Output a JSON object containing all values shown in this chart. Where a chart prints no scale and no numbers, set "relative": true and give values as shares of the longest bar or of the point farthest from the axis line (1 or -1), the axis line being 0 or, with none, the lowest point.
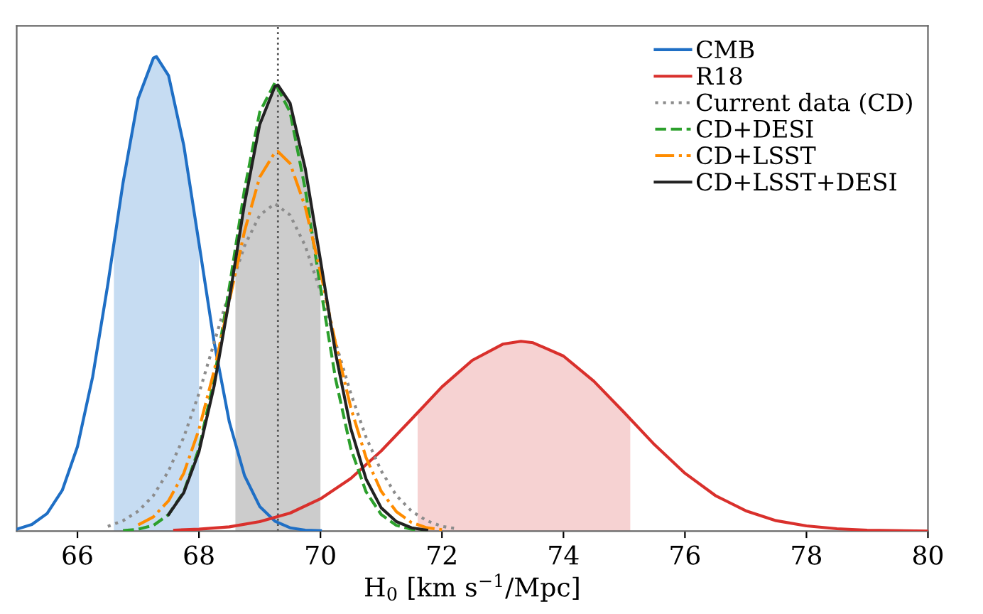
{
  "chart_data": {
    "type": "line",
    "relative": true,
    "xlabel": "H$_{0}$ [km s$^{−1}$/Mpc]",
    "xlim": [
      65,
      80
    ],
    "xticks": [
      66,
      68,
      70,
      72,
      74,
      76,
      78,
      80
    ],
    "tick_labels": "x",
    "grid": false,
    "legend": "top right",
    "ref_lines": [
      {
        "axis": "x",
        "value": 69.3,
        "color": "#555555",
        "line_style": "dotted"
      }
    ],
    "series": [
      {
        "type": "area",
        "color": "#c6dcf2",
        "x": [
          66.6,
          66.75,
          67,
          67.25,
          67.3,
          67.5,
          67.75,
          68
        ],
        "values": [
          0.607,
          0.734,
          0.912,
          0.997,
          1,
          0.96,
          0.813,
          0.607
        ]
      },
      {
        "type": "area",
        "color": "#f6d2d2",
        "x": [
          71.6,
          72,
          72.5,
          73,
          73.3,
          73.5,
          74,
          74.5,
          75,
          75.1
        ],
        "values": [
          0.25,
          0.304,
          0.36,
          0.394,
          0.4,
          0.397,
          0.369,
          0.316,
          0.25,
          0.236
        ]
      },
      {
        "type": "area",
        "color": "#cccccc",
        "x": [
          68.6,
          68.75,
          69,
          69.25,
          69.3,
          69.5,
          69.75,
          70
        ],
        "values": [
          0.571,
          0.69,
          0.857,
          0.937,
          0.94,
          0.902,
          0.764,
          0.571
        ]
      },
      {
        "name": "CMB",
        "color": "#1f6fc5",
        "line_style": "solid",
        "x": [
          65,
          65.25,
          65.5,
          65.75,
          66,
          66.25,
          66.5,
          66.75,
          67,
          67.25,
          67.3,
          67.5,
          67.75,
          68,
          68.25,
          68.5,
          68.75,
          69,
          69.25,
          69.5,
          69.75,
          70
        ],
        "values": [
          0.004,
          0.014,
          0.037,
          0.086,
          0.178,
          0.325,
          0.52,
          0.734,
          0.912,
          0.997,
          1,
          0.96,
          0.813,
          0.607,
          0.398,
          0.23,
          0.117,
          0.052,
          0.021,
          0.007,
          0.002,
          0.001
        ]
      },
      {
        "name": "R18",
        "color": "#d9302c",
        "line_style": "solid",
        "x": [
          67.6,
          68,
          68.5,
          69,
          69.5,
          70,
          70.5,
          71,
          71.5,
          72,
          72.5,
          73,
          73.3,
          73.5,
          74,
          74.5,
          75,
          75.5,
          76,
          76.5,
          77,
          77.5,
          78,
          78.5,
          79,
          80
        ],
        "values": [
          0.002,
          0.004,
          0.009,
          0.02,
          0.038,
          0.068,
          0.111,
          0.169,
          0.236,
          0.304,
          0.36,
          0.394,
          0.4,
          0.397,
          0.369,
          0.316,
          0.25,
          0.182,
          0.122,
          0.075,
          0.043,
          0.022,
          0.011,
          0.005,
          0.002,
          0.0
        ]
      },
      {
        "name": "Current data (CD)",
        "color": "#8c8c8c",
        "line_style": "dotted",
        "x": [
          66.5,
          66.75,
          67,
          67.25,
          67.5,
          67.75,
          68,
          68.25,
          68.5,
          68.75,
          69,
          69.25,
          69.5,
          69.75,
          70,
          70.25,
          70.5,
          70.75,
          71,
          71.25,
          71.5,
          71.75,
          72,
          72.25
        ],
        "values": [
          0.01,
          0.022,
          0.042,
          0.075,
          0.127,
          0.198,
          0.29,
          0.397,
          0.505,
          0.601,
          0.666,
          0.69,
          0.666,
          0.601,
          0.505,
          0.397,
          0.29,
          0.198,
          0.127,
          0.075,
          0.042,
          0.022,
          0.01,
          0.005
        ]
      },
      {
        "name": "CD+DESI",
        "color": "#2ca02c",
        "line_style": "dashed",
        "x": [
          66.75,
          67,
          67.25,
          67.5,
          67.75,
          68,
          68.25,
          68.5,
          68.75,
          69,
          69.25,
          69.5,
          69.75,
          70,
          70.25,
          70.5,
          70.75,
          71,
          71.25,
          71.5,
          71.75
        ],
        "values": [
          0.001,
          0.004,
          0.012,
          0.035,
          0.083,
          0.174,
          0.32,
          0.514,
          0.72,
          0.883,
          0.945,
          0.883,
          0.72,
          0.514,
          0.32,
          0.174,
          0.083,
          0.035,
          0.012,
          0.004,
          0.001
        ]
      },
      {
        "name": "CD+LSST",
        "color": "#ff8c00",
        "line_style": "dashdot",
        "x": [
          67,
          67.25,
          67.5,
          67.75,
          68,
          68.25,
          68.5,
          68.75,
          69,
          69.25,
          69.3,
          69.5,
          69.75,
          70,
          70.25,
          70.5,
          70.75,
          71,
          71.25,
          71.5,
          71.75,
          72
        ],
        "values": [
          0.013,
          0.03,
          0.064,
          0.122,
          0.214,
          0.338,
          0.485,
          0.632,
          0.746,
          0.798,
          0.8,
          0.775,
          0.683,
          0.546,
          0.395,
          0.26,
          0.155,
          0.084,
          0.041,
          0.018,
          0.007,
          0.003
        ]
      },
      {
        "name": "CD+LSST+DESI",
        "color": "#222222",
        "line_style": "solid",
        "x": [
          67.5,
          67.75,
          68,
          68.25,
          68.5,
          68.75,
          69,
          69.25,
          69.3,
          69.5,
          69.75,
          70,
          70.25,
          70.5,
          70.75,
          71,
          71.25,
          71.5,
          71.75
        ],
        "values": [
          0.035,
          0.081,
          0.167,
          0.306,
          0.489,
          0.69,
          0.857,
          0.937,
          0.94,
          0.902,
          0.764,
          0.571,
          0.374,
          0.216,
          0.11,
          0.049,
          0.02,
          0.007,
          0.002
        ]
      }
    ]
  }
}
